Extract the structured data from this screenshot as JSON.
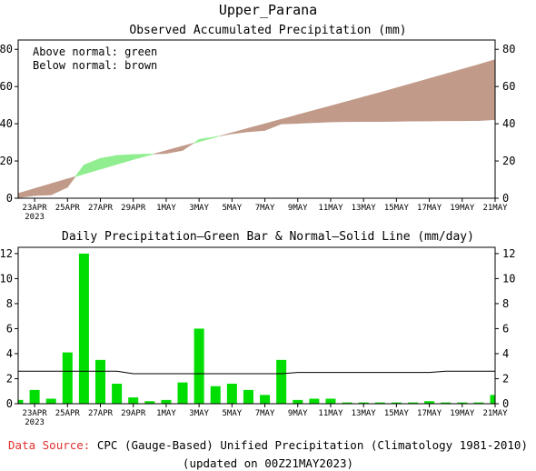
{
  "title": "Upper_Parana",
  "charts": {
    "top_title": "Observed Accumulated Precipitation (mm)",
    "bottom_title": "Daily Precipitation—Green Bar & Normal—Solid Line (mm/day)"
  },
  "legend": {
    "above": "Above normal: green",
    "below": "Below normal: brown"
  },
  "footer": {
    "source_label": "Data Source:",
    "source_text": "CPC (Gauge-Based) Unified Precipitation (Climatology 1981-2010)",
    "updated": "(updated on 00Z21MAY2023)"
  },
  "x_tick_labels": [
    "23APR",
    "25APR",
    "27APR",
    "29APR",
    "1MAY",
    "3MAY",
    "5MAY",
    "7MAY",
    "9MAY",
    "11MAY",
    "13MAY",
    "15MAY",
    "17MAY",
    "19MAY",
    "21MAY"
  ],
  "x_year_label": "2023",
  "colors": {
    "above": "#90ee90",
    "below": "#c19a8a",
    "bar": "#00dd00",
    "source": "#e0302e"
  },
  "chart_data": [
    {
      "type": "area",
      "title": "Observed Accumulated Precipitation (mm)",
      "ylim": [
        0,
        85
      ],
      "yticks": [
        0,
        20,
        40,
        60,
        80
      ],
      "x": [
        "22APR",
        "23APR",
        "24APR",
        "25APR",
        "26APR",
        "27APR",
        "28APR",
        "29APR",
        "30APR",
        "1MAY",
        "2MAY",
        "3MAY",
        "4MAY",
        "5MAY",
        "6MAY",
        "7MAY",
        "8MAY",
        "9MAY",
        "10MAY",
        "11MAY",
        "12MAY",
        "13MAY",
        "14MAY",
        "15MAY",
        "16MAY",
        "17MAY",
        "18MAY",
        "19MAY",
        "20MAY",
        "21MAY"
      ],
      "series": [
        {
          "name": "Observed",
          "values": [
            0.3,
            1.4,
            1.8,
            5.9,
            17.9,
            21.4,
            23.0,
            23.5,
            23.7,
            24.0,
            25.7,
            31.6,
            33.0,
            34.6,
            35.7,
            36.4,
            39.9,
            40.2,
            40.6,
            41.0,
            41.1,
            41.2,
            41.2,
            41.3,
            41.4,
            41.5,
            41.6,
            41.6,
            41.7,
            42.2
          ]
        },
        {
          "name": "Normal",
          "values": [
            2.6,
            5.2,
            7.8,
            10.4,
            13.0,
            15.6,
            18.2,
            20.8,
            23.2,
            25.6,
            28.0,
            30.4,
            32.8,
            35.2,
            37.6,
            40.0,
            42.4,
            44.8,
            47.2,
            49.6,
            52.0,
            54.4,
            56.8,
            59.3,
            61.8,
            64.3,
            66.8,
            69.3,
            71.8,
            74.5
          ]
        }
      ]
    },
    {
      "type": "bar",
      "title": "Daily Precipitation—Green Bar & Normal—Solid Line (mm/day)",
      "ylim": [
        0,
        12.5
      ],
      "yticks": [
        0,
        2,
        4,
        6,
        8,
        10,
        12
      ],
      "categories": [
        "22APR",
        "23APR",
        "24APR",
        "25APR",
        "26APR",
        "27APR",
        "28APR",
        "29APR",
        "30APR",
        "1MAY",
        "2MAY",
        "3MAY",
        "4MAY",
        "5MAY",
        "6MAY",
        "7MAY",
        "8MAY",
        "9MAY",
        "10MAY",
        "11MAY",
        "12MAY",
        "13MAY",
        "14MAY",
        "15MAY",
        "16MAY",
        "17MAY",
        "18MAY",
        "19MAY",
        "20MAY",
        "21MAY"
      ],
      "series": [
        {
          "name": "Daily",
          "values": [
            0.3,
            1.1,
            0.4,
            4.1,
            12.0,
            3.5,
            1.6,
            0.5,
            0.2,
            0.3,
            1.7,
            6.0,
            1.4,
            1.6,
            1.1,
            0.7,
            3.5,
            0.3,
            0.4,
            0.4,
            0.1,
            0.1,
            0.1,
            0.1,
            0.1,
            0.2,
            0.1,
            0.1,
            0.1,
            0.7
          ]
        },
        {
          "name": "Normal",
          "values": [
            2.6,
            2.6,
            2.6,
            2.6,
            2.6,
            2.6,
            2.6,
            2.4,
            2.4,
            2.4,
            2.4,
            2.4,
            2.4,
            2.4,
            2.4,
            2.4,
            2.4,
            2.5,
            2.5,
            2.5,
            2.5,
            2.5,
            2.5,
            2.5,
            2.5,
            2.5,
            2.6,
            2.6,
            2.6,
            2.6
          ]
        }
      ]
    }
  ]
}
